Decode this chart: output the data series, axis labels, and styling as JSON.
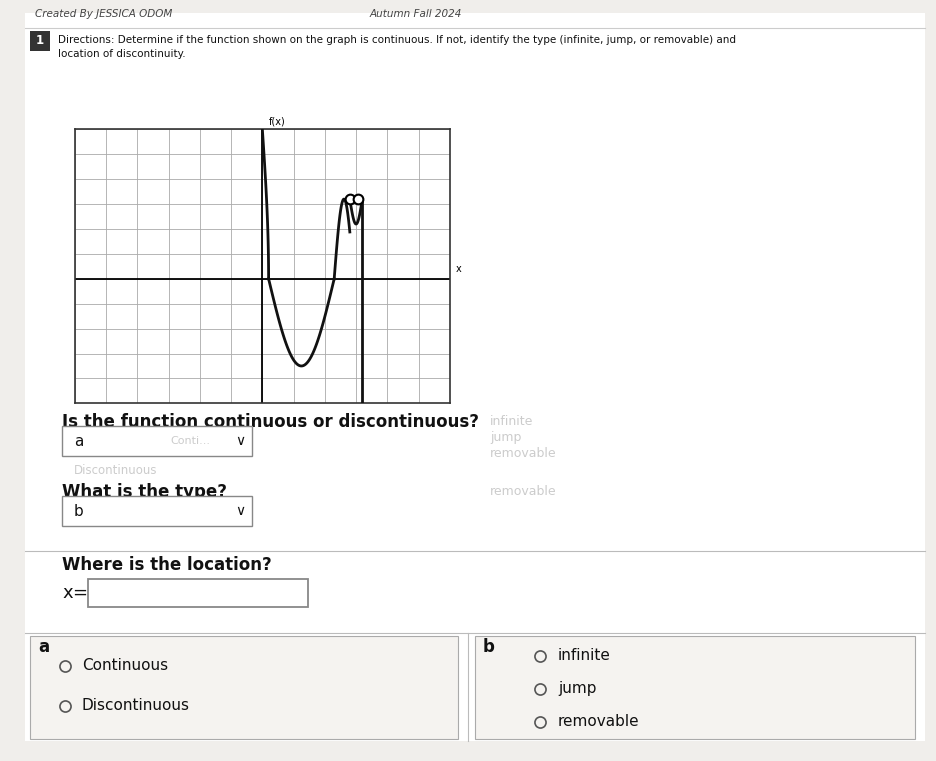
{
  "title_line1": "Created By JESSICA ODOM",
  "title_line2": "Autumn Fall 2024",
  "directions": "Directions: Determine if the function shown on the graph is continuous. If not, identify the type (infinite, jump, or removable) and\nlocation of discontinuity.",
  "question1": "Is the function continuous or discontinuous?",
  "question2": "What is the type?",
  "question3": "Where is the location?",
  "label_a_dropdown": "a",
  "label_b_dropdown": "b",
  "box_a_label": "a",
  "box_b_label": "b",
  "options_a": [
    "Continuous",
    "Discontinuous"
  ],
  "options_b": [
    "infinite",
    "jump",
    "removable"
  ],
  "x_equals": "x =",
  "bg_color": "#f0eeeb",
  "white": "#ffffff",
  "graph_grid_color": "#aaaaaa",
  "graph_line_color": "#111111",
  "ghost_color": "#cccccc",
  "border_color": "#888888",
  "text_dark": "#111111",
  "text_header": "#444444"
}
